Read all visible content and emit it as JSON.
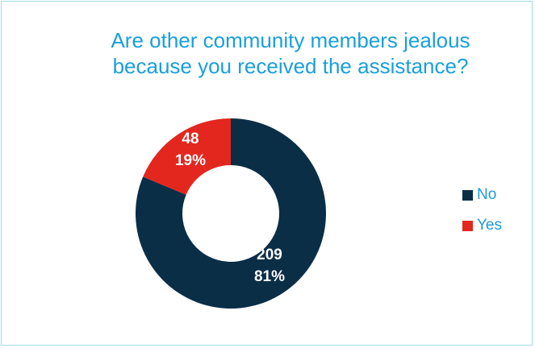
{
  "chart_data": {
    "type": "pie",
    "title": "Are other community members jealous because you received the assistance?",
    "title_lines": [
      "Are other community members jealous",
      "because you received the assistance?"
    ],
    "style": "donut",
    "legend_position": "right",
    "slices": [
      {
        "label": "No",
        "value": 209,
        "percent_label": "81%",
        "color": "#0b2e47"
      },
      {
        "label": "Yes",
        "value": 48,
        "percent_label": "19%",
        "color": "#e3271f"
      }
    ]
  }
}
